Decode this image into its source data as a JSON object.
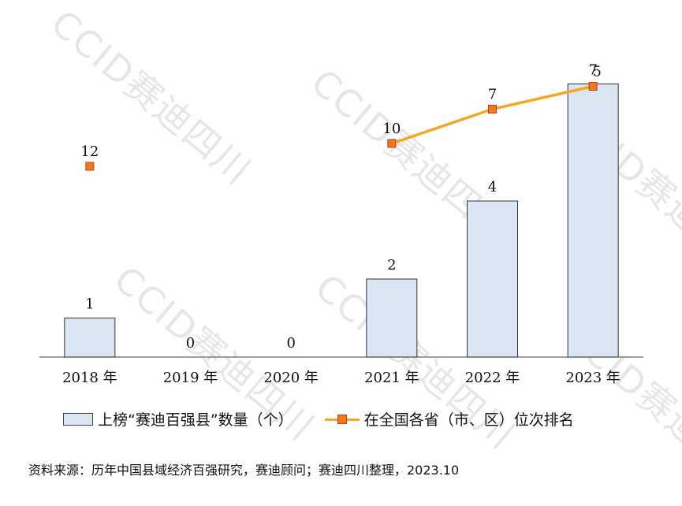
{
  "chart_data": {
    "type": "bar",
    "categories": [
      "2018 年",
      "2019 年",
      "2020 年",
      "2021 年",
      "2022 年",
      "2023 年"
    ],
    "series": [
      {
        "name": "上榜“赛迪百强县”数量（个）",
        "type": "bar",
        "values": [
          1,
          0,
          0,
          2,
          4,
          7
        ],
        "color": "#dae6f4"
      },
      {
        "name": "在全国各省（市、区）位次排名",
        "type": "line",
        "values": [
          12,
          null,
          null,
          10,
          7,
          5
        ],
        "color": "#f5a623"
      }
    ],
    "bar_ylim": [
      0,
      8
    ],
    "rank_ylim": [
      0,
      17
    ],
    "grid": false,
    "legend_position": "bottom"
  },
  "watermark_text": "CCID赛迪四川",
  "source_text": "资料来源：历年中国县域经济百强研究，赛迪顾问；赛迪四川整理，2023.10"
}
